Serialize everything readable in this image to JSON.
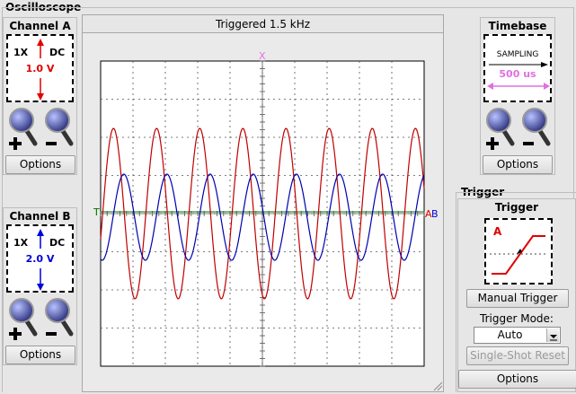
{
  "window": {
    "title": "Oscilloscope"
  },
  "channel_a": {
    "title": "Channel A",
    "coupling": "DC",
    "probe": "1X",
    "volts_div": "1.0 V",
    "color": "#e00000",
    "options_label": "Options"
  },
  "channel_b": {
    "title": "Channel B",
    "coupling": "DC",
    "probe": "1X",
    "volts_div": "2.0 V",
    "color": "#0000d8",
    "options_label": "Options"
  },
  "screen": {
    "title": "Triggered 1.5 kHz",
    "x_marker": "X",
    "trigger_marker": "T",
    "channel_a_marker": "A",
    "channel_b_marker": "B",
    "grid_color": "#555555",
    "trace_a_color": "#c00000",
    "trace_b_color": "#0000b0",
    "trigger_line_color": "#007000"
  },
  "timebase": {
    "title": "Timebase",
    "mode": "SAMPLING",
    "time_div": "500 us",
    "accent": "#e070e0",
    "options_label": "Options"
  },
  "trigger": {
    "group_title": "Trigger",
    "title": "Trigger",
    "source": "A",
    "manual_label": "Manual Trigger",
    "mode_label": "Trigger Mode:",
    "mode_value": "Auto",
    "single_shot_label": "Single-Shot Reset",
    "options_label": "Options"
  },
  "icons": {
    "zoom_in": "magnifier-plus-icon",
    "zoom_out": "magnifier-minus-icon"
  }
}
